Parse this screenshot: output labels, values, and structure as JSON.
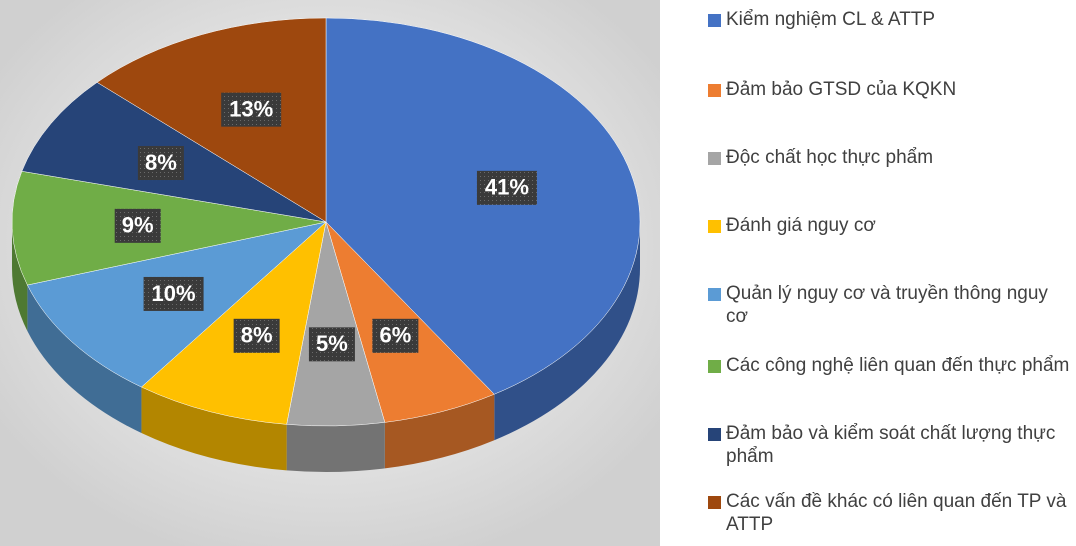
{
  "chart_data": {
    "type": "pie",
    "categories": [
      "Kiểm nghiệm CL & ATTP",
      "Đảm bảo GTSD của KQKN",
      "Độc chất học thực phẩm",
      "Đánh giá nguy cơ",
      "Quản lý nguy cơ và truyền thông nguy cơ",
      "Các công nghệ liên quan đến thực phẩm",
      "Đảm bảo và kiểm soát chất lượng thực phẩm",
      "Các vấn đề khác có liên quan đến TP và ATTP"
    ],
    "values": [
      41,
      6,
      5,
      8,
      10,
      9,
      8,
      13
    ],
    "value_labels": [
      "41%",
      "6%",
      "5%",
      "8%",
      "10%",
      "9%",
      "8%",
      "13%"
    ],
    "colors": [
      "#4472c4",
      "#ed7d31",
      "#a5a5a5",
      "#ffc000",
      "#5b9bd5",
      "#70ad47",
      "#264478",
      "#9e480e"
    ]
  }
}
